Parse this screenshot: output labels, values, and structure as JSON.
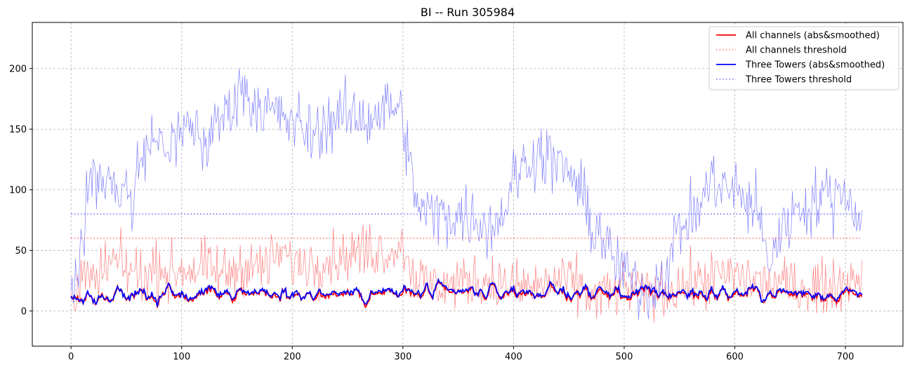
{
  "chart_data": {
    "type": "line",
    "title": "BI -- Run 305984",
    "xlabel": "",
    "ylabel": "",
    "xlim": [
      -35,
      752
    ],
    "ylim": [
      -29,
      238
    ],
    "xticks": [
      0,
      100,
      200,
      300,
      400,
      500,
      600,
      700
    ],
    "yticks": [
      0,
      50,
      100,
      150,
      200
    ],
    "grid": true,
    "legend_position": "top-right",
    "series": [
      {
        "name": "All channels (abs&smoothed)",
        "color": "#ff0000",
        "style": "solid",
        "raw_color": "#ff8080",
        "raw_anchors": [
          [
            0,
            10
          ],
          [
            5,
            22
          ],
          [
            10,
            30
          ],
          [
            20,
            20
          ],
          [
            30,
            35
          ],
          [
            40,
            40
          ],
          [
            50,
            35
          ],
          [
            60,
            30
          ],
          [
            70,
            30
          ],
          [
            80,
            38
          ],
          [
            90,
            30
          ],
          [
            100,
            35
          ],
          [
            120,
            35
          ],
          [
            140,
            30
          ],
          [
            150,
            35
          ],
          [
            160,
            40
          ],
          [
            170,
            35
          ],
          [
            180,
            40
          ],
          [
            190,
            48
          ],
          [
            200,
            40
          ],
          [
            220,
            40
          ],
          [
            240,
            45
          ],
          [
            250,
            45
          ],
          [
            260,
            50
          ],
          [
            270,
            50
          ],
          [
            280,
            50
          ],
          [
            290,
            50
          ],
          [
            300,
            55
          ],
          [
            310,
            30
          ],
          [
            320,
            22
          ],
          [
            340,
            22
          ],
          [
            360,
            25
          ],
          [
            380,
            25
          ],
          [
            400,
            20
          ],
          [
            420,
            20
          ],
          [
            440,
            25
          ],
          [
            460,
            22
          ],
          [
            470,
            10
          ],
          [
            480,
            15
          ],
          [
            490,
            15
          ],
          [
            500,
            20
          ],
          [
            520,
            15
          ],
          [
            540,
            18
          ],
          [
            560,
            22
          ],
          [
            580,
            28
          ],
          [
            600,
            30
          ],
          [
            620,
            25
          ],
          [
            640,
            22
          ],
          [
            660,
            20
          ],
          [
            680,
            20
          ],
          [
            700,
            25
          ],
          [
            710,
            30
          ],
          [
            715,
            28
          ]
        ],
        "smooth_anchors": [
          [
            0,
            10
          ],
          [
            100,
            14
          ],
          [
            200,
            14
          ],
          [
            300,
            14
          ],
          [
            400,
            15
          ],
          [
            500,
            14
          ],
          [
            600,
            14
          ],
          [
            715,
            14
          ]
        ]
      },
      {
        "name": "All channels threshold",
        "color": "#ff0000",
        "style": "dotted",
        "values": [
          [
            0,
            60
          ],
          [
            715,
            60
          ]
        ]
      },
      {
        "name": "Three Towers (abs&smoothed)",
        "color": "#0000ff",
        "style": "solid",
        "raw_color": "#8080ff",
        "raw_anchors": [
          [
            0,
            10
          ],
          [
            5,
            42
          ],
          [
            10,
            40
          ],
          [
            15,
            110
          ],
          [
            20,
            105
          ],
          [
            30,
            110
          ],
          [
            40,
            100
          ],
          [
            50,
            105
          ],
          [
            55,
            80
          ],
          [
            60,
            115
          ],
          [
            70,
            140
          ],
          [
            80,
            140
          ],
          [
            90,
            135
          ],
          [
            100,
            145
          ],
          [
            110,
            155
          ],
          [
            120,
            135
          ],
          [
            130,
            150
          ],
          [
            140,
            165
          ],
          [
            150,
            175
          ],
          [
            155,
            190
          ],
          [
            160,
            175
          ],
          [
            170,
            170
          ],
          [
            180,
            165
          ],
          [
            190,
            160
          ],
          [
            200,
            155
          ],
          [
            210,
            150
          ],
          [
            220,
            145
          ],
          [
            230,
            155
          ],
          [
            240,
            160
          ],
          [
            250,
            160
          ],
          [
            260,
            160
          ],
          [
            270,
            160
          ],
          [
            280,
            165
          ],
          [
            290,
            170
          ],
          [
            300,
            160
          ],
          [
            310,
            95
          ],
          [
            320,
            80
          ],
          [
            340,
            80
          ],
          [
            360,
            78
          ],
          [
            380,
            70
          ],
          [
            390,
            80
          ],
          [
            400,
            110
          ],
          [
            410,
            120
          ],
          [
            420,
            130
          ],
          [
            430,
            128
          ],
          [
            440,
            120
          ],
          [
            450,
            115
          ],
          [
            460,
            100
          ],
          [
            470,
            70
          ],
          [
            480,
            65
          ],
          [
            490,
            40
          ],
          [
            500,
            35
          ],
          [
            510,
            20
          ],
          [
            520,
            15
          ],
          [
            530,
            25
          ],
          [
            540,
            40
          ],
          [
            550,
            70
          ],
          [
            560,
            75
          ],
          [
            570,
            90
          ],
          [
            580,
            110
          ],
          [
            590,
            100
          ],
          [
            600,
            100
          ],
          [
            610,
            90
          ],
          [
            620,
            85
          ],
          [
            630,
            40
          ],
          [
            640,
            60
          ],
          [
            650,
            80
          ],
          [
            660,
            85
          ],
          [
            670,
            90
          ],
          [
            680,
            95
          ],
          [
            690,
            95
          ],
          [
            700,
            100
          ],
          [
            710,
            80
          ],
          [
            715,
            70
          ]
        ],
        "smooth_anchors": [
          [
            0,
            10
          ],
          [
            100,
            15
          ],
          [
            200,
            15
          ],
          [
            300,
            15
          ],
          [
            400,
            16
          ],
          [
            500,
            15
          ],
          [
            600,
            15
          ],
          [
            715,
            15
          ]
        ]
      },
      {
        "name": "Three Towers threshold",
        "color": "#0000ff",
        "style": "dotted",
        "values": [
          [
            0,
            80
          ],
          [
            715,
            80
          ]
        ]
      }
    ]
  }
}
